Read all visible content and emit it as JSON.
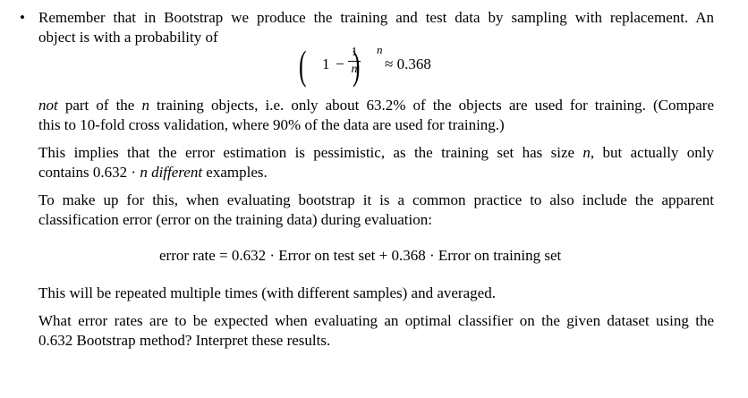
{
  "bullet": "•",
  "p1": {
    "l1": "Remember that in Bootstrap we produce the training and test data by sampling with replacement. An",
    "l2": "object is with a probability of"
  },
  "formula1": {
    "one": "1",
    "minus": "−",
    "num": "1",
    "den": "n",
    "exp": "n",
    "approx": "≈ 0.368"
  },
  "p2": {
    "l1_not": "not",
    "l1_a": " part of the ",
    "l1_n": "n",
    "l1_b": " training objects, i.e. only about 63.2% of the objects are used for training. (Compare",
    "l2": "this to 10-fold cross validation, where 90% of the data are used for training.)"
  },
  "p3": {
    "l1_a": "This implies that the error estimation is pessimistic, as the training set has size ",
    "l1_n": "n",
    "l1_b": ", but actually only",
    "l2_a": "contains 0.632 · ",
    "l2_n": "n",
    "l2_diff": " different",
    "l2_b": " examples."
  },
  "p4": {
    "l1": "To make up for this, when evaluating bootstrap it is a common practice to also include the apparent",
    "l2": "classification error (error on the training data) during evaluation:"
  },
  "formula2": {
    "text": "error rate = 0.632 · Error on test set + 0.368 · Error on training set"
  },
  "p5": {
    "l1": "This will be repeated multiple times (with different samples) and averaged."
  },
  "p6": {
    "l1": "What error rates are to be expected when evaluating an optimal classifier on the given dataset using the",
    "l2": "0.632 Bootstrap method? Interpret these results."
  }
}
